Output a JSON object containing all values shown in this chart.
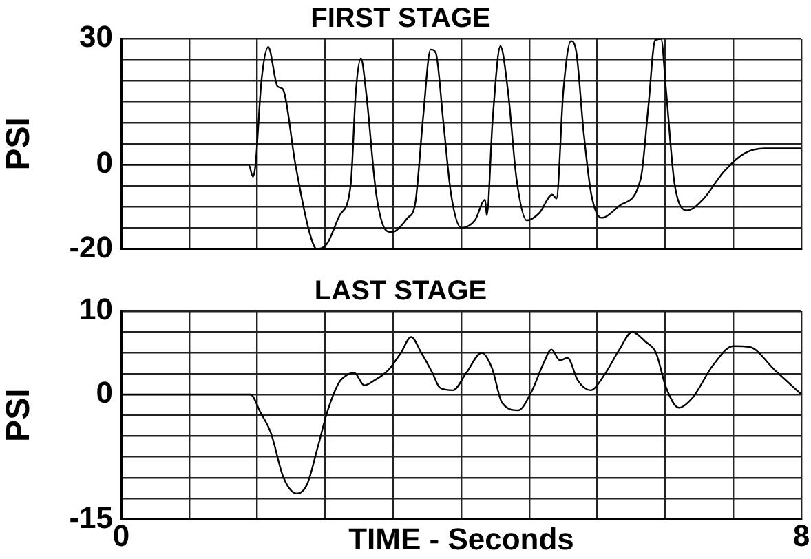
{
  "chart_data": [
    {
      "type": "line",
      "title": "FIRST STAGE",
      "ylabel": "PSI",
      "xlim": [
        0,
        8
      ],
      "ylim": [
        -20,
        30
      ],
      "xticks": [
        {
          "value": 0,
          "label": null
        },
        {
          "value": 0.8,
          "label": null
        },
        {
          "value": 1.6,
          "label": null
        },
        {
          "value": 2.4,
          "label": null
        },
        {
          "value": 3.2,
          "label": null
        },
        {
          "value": 4,
          "label": null
        },
        {
          "value": 4.8,
          "label": null
        },
        {
          "value": 5.6,
          "label": null
        },
        {
          "value": 6.4,
          "label": null
        },
        {
          "value": 7.2,
          "label": null
        },
        {
          "value": 8,
          "label": null
        }
      ],
      "yticks": [
        -20,
        {
          "value": -15,
          "label": null
        },
        {
          "value": -10,
          "label": null
        },
        {
          "value": -5,
          "label": null
        },
        0,
        {
          "value": 5,
          "label": null
        },
        {
          "value": 10,
          "label": null
        },
        {
          "value": 15,
          "label": null
        },
        {
          "value": 20,
          "label": null
        },
        {
          "value": 25,
          "label": null
        },
        30
      ],
      "tick_labels": "y",
      "grid": true,
      "marker": "none",
      "series": [
        {
          "color": "#000000",
          "x": [
            0,
            1.5,
            1.55,
            1.58,
            1.65,
            1.73,
            1.84,
            1.9,
            2.05,
            2.21,
            2.3,
            2.42,
            2.57,
            2.7,
            2.76,
            2.82,
            2.88,
            3.0,
            3.12,
            3.18,
            3.37,
            3.46,
            3.55,
            3.64,
            3.7,
            3.79,
            3.88,
            4.0,
            4.16,
            4.28,
            4.3,
            4.37,
            4.46,
            4.55,
            4.65,
            4.77,
            4.92,
            5.07,
            5.12,
            5.2,
            5.29,
            5.35,
            5.44,
            5.53,
            5.65,
            5.87,
            6.11,
            6.2,
            6.28,
            6.35,
            6.41,
            6.51,
            6.66,
            6.84,
            7.09,
            7.33,
            7.57,
            8
          ],
          "values": [
            0,
            0,
            -2.8,
            0,
            20,
            28,
            18.6,
            18,
            0,
            -15.7,
            -20,
            -18.8,
            -12,
            -4.7,
            17.4,
            25.3,
            17.4,
            -7,
            -15.7,
            -16,
            -12.6,
            -9,
            11,
            27.4,
            26.6,
            10,
            -7,
            -15,
            -13.2,
            -8.3,
            -12,
            11,
            28.2,
            17.4,
            -3.4,
            -13.2,
            -11.4,
            -7.1,
            -8,
            17.4,
            29.4,
            27.2,
            7.6,
            -7.1,
            -12.6,
            -9.6,
            -3.4,
            13.7,
            29.6,
            29.9,
            17.4,
            -4.7,
            -10.8,
            -8.3,
            -1.6,
            2.7,
            3.9,
            3.9
          ]
        }
      ]
    },
    {
      "type": "line",
      "title": "LAST STAGE",
      "xlabel": "TIME - Seconds",
      "ylabel": "PSI",
      "xlim": [
        0,
        8
      ],
      "ylim": [
        -15,
        10
      ],
      "xticks": [
        0,
        {
          "value": 0.8,
          "label": null
        },
        {
          "value": 1.6,
          "label": null
        },
        {
          "value": 2.4,
          "label": null
        },
        {
          "value": 3.2,
          "label": null
        },
        {
          "value": 4,
          "label": null
        },
        {
          "value": 4.8,
          "label": null
        },
        {
          "value": 5.6,
          "label": null
        },
        {
          "value": 6.4,
          "label": null
        },
        {
          "value": 7.2,
          "label": null
        },
        8
      ],
      "yticks": [
        -15,
        {
          "value": -12.5,
          "label": null
        },
        {
          "value": -10,
          "label": null
        },
        {
          "value": -7.5,
          "label": null
        },
        {
          "value": -5,
          "label": null
        },
        {
          "value": -2.5,
          "label": null
        },
        0,
        {
          "value": 2.5,
          "label": null
        },
        {
          "value": 5,
          "label": null
        },
        {
          "value": 7.5,
          "label": null
        },
        10
      ],
      "grid": true,
      "marker": "none",
      "series": [
        {
          "color": "#000000",
          "x": [
            0,
            1.52,
            1.64,
            1.76,
            1.91,
            2.07,
            2.19,
            2.31,
            2.43,
            2.56,
            2.65,
            2.74,
            2.86,
            2.98,
            3.14,
            3.29,
            3.41,
            3.53,
            3.66,
            3.75,
            3.9,
            4.06,
            4.24,
            4.36,
            4.48,
            4.67,
            4.82,
            4.97,
            5.06,
            5.16,
            5.25,
            5.37,
            5.52,
            5.68,
            5.86,
            6.01,
            6.17,
            6.29,
            6.41,
            6.56,
            6.72,
            6.96,
            7.2,
            7.39,
            7.69,
            8
          ],
          "values": [
            0,
            0,
            -2.2,
            -4.6,
            -10,
            -11.9,
            -10.7,
            -6.4,
            -1.9,
            1.4,
            2.3,
            2.6,
            1.1,
            1.7,
            2.9,
            5,
            6.9,
            5,
            2.6,
            0.8,
            0.5,
            2.6,
            5,
            3.2,
            -1,
            -1.9,
            0.2,
            3.8,
            5.4,
            4.1,
            4.4,
            1.7,
            0.5,
            2.3,
            5.4,
            7.5,
            6.3,
            5,
            0.8,
            -1.6,
            -0.4,
            3.5,
            5.8,
            5.7,
            2.9,
            0
          ]
        }
      ]
    }
  ]
}
